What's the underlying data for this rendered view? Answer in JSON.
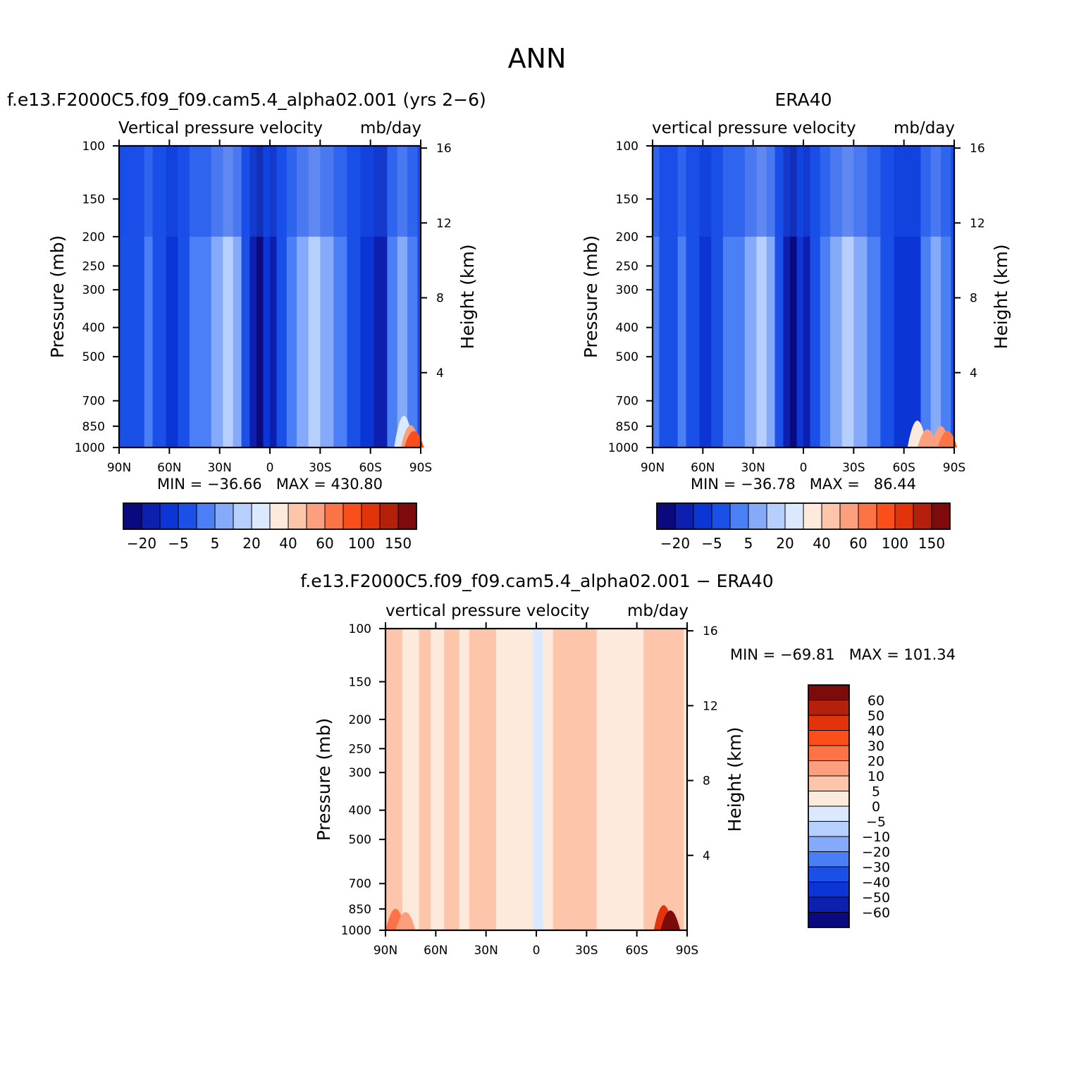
{
  "figure": {
    "title": "ANN"
  },
  "chart_data": [
    {
      "id": "model",
      "type": "heatmap",
      "case_title": "f.e13.F2000C5.f09_f09.cam5.4_alpha02.001 (yrs 2-6)",
      "title_left": "Vertical pressure velocity",
      "title_right": "mb/day",
      "ylabel": "Pressure (mb)",
      "ylabel_right": "Height (km)",
      "x_ticks": [
        "90N",
        "60N",
        "30N",
        "0",
        "30S",
        "60S",
        "90S"
      ],
      "x_values": [
        90,
        60,
        30,
        0,
        -30,
        -60,
        -90
      ],
      "y_ticks": [
        100,
        150,
        200,
        250,
        300,
        400,
        500,
        700,
        850,
        1000
      ],
      "height_ticks_km": [
        4,
        8,
        12,
        16
      ],
      "stats": "MIN = -36.66   MAX = 430.80",
      "colorbar_labels": [
        "-20",
        "-5",
        "5",
        "20",
        "40",
        "60",
        "100",
        "150"
      ],
      "field_bands_deg": [
        {
          "lat": 90,
          "level": 3
        },
        {
          "lat": 86,
          "level": 3
        },
        {
          "lat": 80,
          "level": 3
        },
        {
          "lat": 75,
          "level": 4
        },
        {
          "lat": 70,
          "level": 3
        },
        {
          "lat": 62,
          "level": 2
        },
        {
          "lat": 55,
          "level": 3
        },
        {
          "lat": 48,
          "level": 4
        },
        {
          "lat": 42,
          "level": 4
        },
        {
          "lat": 35,
          "level": 5
        },
        {
          "lat": 28,
          "level": 6
        },
        {
          "lat": 22,
          "level": 5
        },
        {
          "lat": 17,
          "level": 3
        },
        {
          "lat": 12,
          "level": 1
        },
        {
          "lat": 8,
          "level": 0
        },
        {
          "lat": 4,
          "level": 2
        },
        {
          "lat": 0,
          "level": 1
        },
        {
          "lat": -4,
          "level": 3
        },
        {
          "lat": -10,
          "level": 4
        },
        {
          "lat": -16,
          "level": 5
        },
        {
          "lat": -23,
          "level": 6
        },
        {
          "lat": -30,
          "level": 5
        },
        {
          "lat": -38,
          "level": 4
        },
        {
          "lat": -46,
          "level": 3
        },
        {
          "lat": -54,
          "level": 2
        },
        {
          "lat": -62,
          "level": 1
        },
        {
          "lat": -70,
          "level": 4
        },
        {
          "lat": -76,
          "level": 5
        },
        {
          "lat": -82,
          "level": 4
        },
        {
          "lat": -88,
          "level": 3
        }
      ],
      "surface_patches": [
        {
          "lat": -80,
          "p_top": 650,
          "level": 7
        },
        {
          "lat": -84,
          "p_top": 750,
          "level": 10
        },
        {
          "lat": -86,
          "p_top": 820,
          "level": 12
        }
      ]
    },
    {
      "id": "obs",
      "type": "heatmap",
      "case_title": "ERA40",
      "title_left": "vertical pressure velocity",
      "title_right": "mb/day",
      "ylabel": "Pressure (mb)",
      "ylabel_right": "Height (km)",
      "x_ticks": [
        "90N",
        "60N",
        "30N",
        "0",
        "30S",
        "60S",
        "90S"
      ],
      "x_values": [
        90,
        60,
        30,
        0,
        -30,
        -60,
        -90
      ],
      "y_ticks": [
        100,
        150,
        200,
        250,
        300,
        400,
        500,
        700,
        850,
        1000
      ],
      "height_ticks_km": [
        4,
        8,
        12,
        16
      ],
      "stats": "MIN = -36.78   MAX =   86.44",
      "colorbar_labels": [
        "-20",
        "-5",
        "5",
        "20",
        "40",
        "60",
        "100",
        "150"
      ],
      "field_bands_deg": [
        {
          "lat": 90,
          "level": 4
        },
        {
          "lat": 86,
          "level": 3
        },
        {
          "lat": 80,
          "level": 3
        },
        {
          "lat": 75,
          "level": 4
        },
        {
          "lat": 70,
          "level": 3
        },
        {
          "lat": 62,
          "level": 2
        },
        {
          "lat": 55,
          "level": 3
        },
        {
          "lat": 48,
          "level": 4
        },
        {
          "lat": 42,
          "level": 4
        },
        {
          "lat": 35,
          "level": 5
        },
        {
          "lat": 28,
          "level": 6
        },
        {
          "lat": 22,
          "level": 5
        },
        {
          "lat": 17,
          "level": 3
        },
        {
          "lat": 12,
          "level": 1
        },
        {
          "lat": 8,
          "level": 0
        },
        {
          "lat": 4,
          "level": 2
        },
        {
          "lat": 0,
          "level": 1
        },
        {
          "lat": -4,
          "level": 3
        },
        {
          "lat": -10,
          "level": 4
        },
        {
          "lat": -16,
          "level": 5
        },
        {
          "lat": -23,
          "level": 6
        },
        {
          "lat": -30,
          "level": 5
        },
        {
          "lat": -38,
          "level": 4
        },
        {
          "lat": -46,
          "level": 3
        },
        {
          "lat": -54,
          "level": 2
        },
        {
          "lat": -62,
          "level": 2
        },
        {
          "lat": -70,
          "level": 4
        },
        {
          "lat": -76,
          "level": 5
        },
        {
          "lat": -82,
          "level": 4
        },
        {
          "lat": -88,
          "level": 3
        }
      ],
      "surface_patches": [
        {
          "lat": -68,
          "p_top": 700,
          "level": 8
        },
        {
          "lat": -74,
          "p_top": 800,
          "level": 10
        },
        {
          "lat": -82,
          "p_top": 760,
          "level": 10
        },
        {
          "lat": -86,
          "p_top": 820,
          "level": 11
        }
      ]
    },
    {
      "id": "diff",
      "type": "heatmap",
      "case_title": "f.e13.F2000C5.f09_f09.cam5.4_alpha02.001 - ERA40",
      "title_left": "vertical pressure velocity",
      "title_right": "mb/day",
      "ylabel": "Pressure (mb)",
      "ylabel_right": "Height (km)",
      "x_ticks": [
        "90N",
        "60N",
        "30N",
        "0",
        "30S",
        "60S",
        "90S"
      ],
      "x_values": [
        90,
        60,
        30,
        0,
        -30,
        -60,
        -90
      ],
      "y_ticks": [
        100,
        150,
        200,
        250,
        300,
        400,
        500,
        700,
        850,
        1000
      ],
      "height_ticks_km": [
        4,
        8,
        12,
        16
      ],
      "stats": "MIN = -69.81   MAX = 101.34",
      "colorbar_labels": [
        "60",
        "50",
        "40",
        "30",
        "20",
        "10",
        "5",
        "0",
        "-5",
        "-10",
        "-20",
        "-30",
        "-40",
        "-50",
        "-60"
      ],
      "field_bands_deg": [
        {
          "lat": 90,
          "level": 6
        },
        {
          "lat": 80,
          "level": 7
        },
        {
          "lat": 70,
          "level": 6
        },
        {
          "lat": 63,
          "level": 7
        },
        {
          "lat": 55,
          "level": 6
        },
        {
          "lat": 46,
          "level": 7
        },
        {
          "lat": 40,
          "level": 6
        },
        {
          "lat": 30,
          "level": 6
        },
        {
          "lat": 24,
          "level": 7
        },
        {
          "lat": 16,
          "level": 7
        },
        {
          "lat": 6,
          "level": 7
        },
        {
          "lat": 2,
          "level": 8
        },
        {
          "lat": -4,
          "level": 7
        },
        {
          "lat": -10,
          "level": 6
        },
        {
          "lat": -20,
          "level": 6
        },
        {
          "lat": -30,
          "level": 6
        },
        {
          "lat": -36,
          "level": 7
        },
        {
          "lat": -46,
          "level": 7
        },
        {
          "lat": -56,
          "level": 7
        },
        {
          "lat": -64,
          "level": 6
        },
        {
          "lat": -74,
          "level": 6
        },
        {
          "lat": -82,
          "level": 6
        },
        {
          "lat": -88,
          "level": 7
        }
      ],
      "surface_patches": [
        {
          "lat": 84,
          "p_top": 760,
          "level": 4
        },
        {
          "lat": 78,
          "p_top": 800,
          "level": 5
        },
        {
          "lat": -76,
          "p_top": 720,
          "level": 2
        },
        {
          "lat": -80,
          "p_top": 780,
          "level": 0
        }
      ]
    }
  ],
  "palettes": {
    "abs": [
      "#0a0a7e",
      "#0c1fae",
      "#0c35d6",
      "#1a4fe8",
      "#4a7ff5",
      "#85aafa",
      "#b6cffc",
      "#dbe9fe",
      "#feeadc",
      "#fdc6ab",
      "#fc9f7e",
      "#fc7446",
      "#fb4f1b",
      "#e2330a",
      "#b5200a",
      "#7d0b0b"
    ],
    "diff": [
      "#7d0b0b",
      "#b5200a",
      "#e2330a",
      "#fb4f1b",
      "#fc7446",
      "#fc9f7e",
      "#fdc6ab",
      "#feeadc",
      "#dbe9fe",
      "#b6cffc",
      "#85aafa",
      "#4a7ff5",
      "#1a4fe8",
      "#0c35d6",
      "#0c1fae",
      "#0a0a7e"
    ]
  }
}
